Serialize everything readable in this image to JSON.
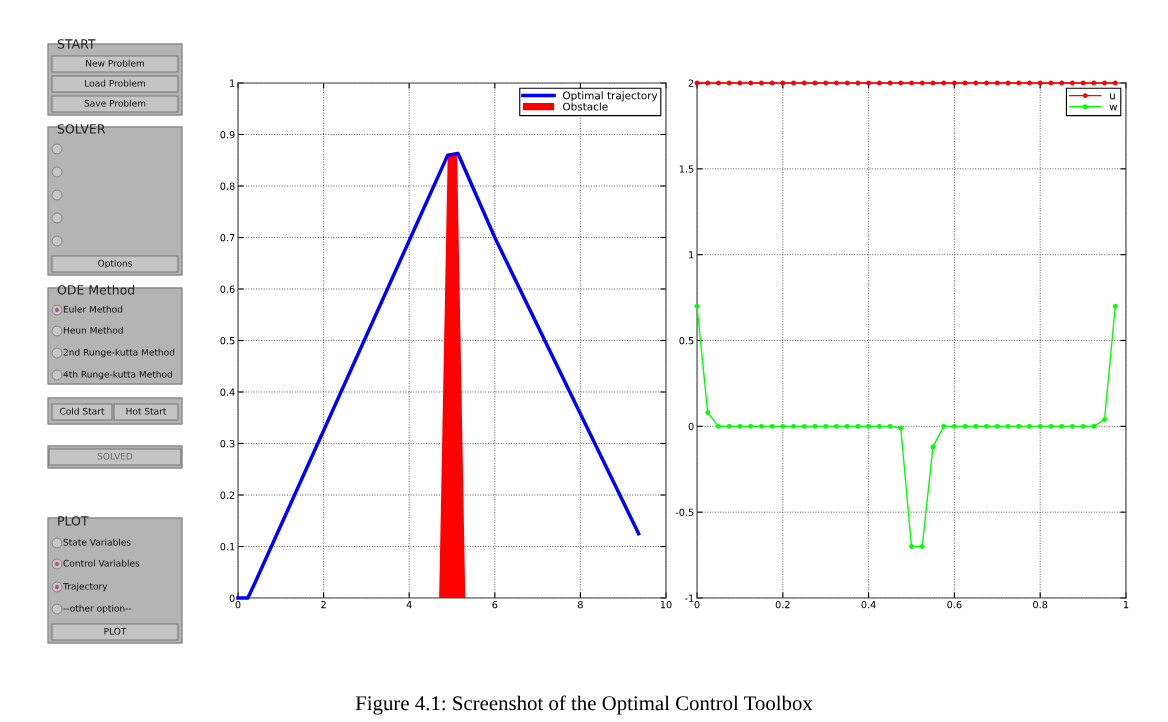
{
  "chart_data": [
    {
      "type": "other",
      "annotations": [
        "START",
        "New Problem",
        "Load Problem",
        "Save Problem",
        "SOLVER",
        "Options",
        "ODE Method",
        "Euler Method",
        "Heun Method",
        "2nd Runge-kutta Method",
        "4th Runge-kutta Method",
        "Cold Start",
        "Hot Start",
        "SOLVED",
        "PLOT",
        "State Variables",
        "Control Variables",
        "Trajectory",
        "--other option--",
        "PLOT",
        "Figure 4.1: Screenshot of the Optimal Control Toolbox"
      ]
    },
    {
      "type": "line",
      "xlim": [
        0,
        10
      ],
      "ylim": [
        0,
        1
      ],
      "xticks": [
        0,
        2,
        4,
        6,
        8,
        10
      ],
      "yticks": [
        0,
        0.1,
        0.2,
        0.3,
        0.4,
        0.5,
        0.6,
        0.7,
        0.8,
        0.9,
        1
      ],
      "grid": true,
      "legend": "top right",
      "series": [
        {
          "name": "Optimal trajectory",
          "color": "#0000ff",
          "x": [
            0,
            0.23,
            0.4,
            4.9,
            5.14,
            6,
            9.36
          ],
          "values": [
            0,
            0,
            0.03,
            0.86,
            0.863,
            0.7,
            0.125
          ]
        },
        {
          "name": "Obstacle",
          "type": "area",
          "color": "#ff0000",
          "x": [
            4.7,
            4.9,
            5.12,
            5.31
          ],
          "values": [
            0,
            0.86,
            0.86,
            0
          ]
        }
      ]
    },
    {
      "type": "line",
      "xlim": [
        0,
        1
      ],
      "ylim": [
        -1,
        2
      ],
      "xticks": [
        0,
        0.2,
        0.4,
        0.6,
        0.8,
        1
      ],
      "yticks": [
        -1,
        -0.5,
        0,
        0.5,
        1,
        1.5,
        2
      ],
      "grid": true,
      "legend": "top right",
      "marker": "circle",
      "x": [
        0,
        0.025,
        0.05,
        0.075,
        0.1,
        0.125,
        0.15,
        0.175,
        0.2,
        0.225,
        0.25,
        0.275,
        0.3,
        0.325,
        0.35,
        0.375,
        0.4,
        0.425,
        0.45,
        0.475,
        0.5,
        0.525,
        0.55,
        0.575,
        0.6,
        0.625,
        0.65,
        0.675,
        0.7,
        0.725,
        0.75,
        0.775,
        0.8,
        0.825,
        0.85,
        0.875,
        0.9,
        0.925,
        0.95,
        0.975
      ],
      "series": [
        {
          "name": "u",
          "color": "#ff0000",
          "values": [
            2,
            2,
            2,
            2,
            2,
            2,
            2,
            2,
            2,
            2,
            2,
            2,
            2,
            2,
            2,
            2,
            2,
            2,
            2,
            2,
            2,
            2,
            2,
            2,
            2,
            2,
            2,
            2,
            2,
            2,
            2,
            2,
            2,
            2,
            2,
            2,
            2,
            2,
            2,
            2
          ]
        },
        {
          "name": "w",
          "color": "#00ff00",
          "values": [
            0.7,
            0.08,
            0,
            0,
            0,
            0,
            0,
            0,
            0,
            0,
            0,
            0,
            0,
            0,
            0,
            0,
            0,
            0,
            0,
            -0.01,
            -0.7,
            -0.7,
            -0.12,
            0,
            0,
            0,
            0,
            0,
            0,
            0,
            0,
            0,
            0,
            0,
            0,
            0,
            0,
            0,
            0.04,
            0.7
          ]
        }
      ]
    }
  ]
}
